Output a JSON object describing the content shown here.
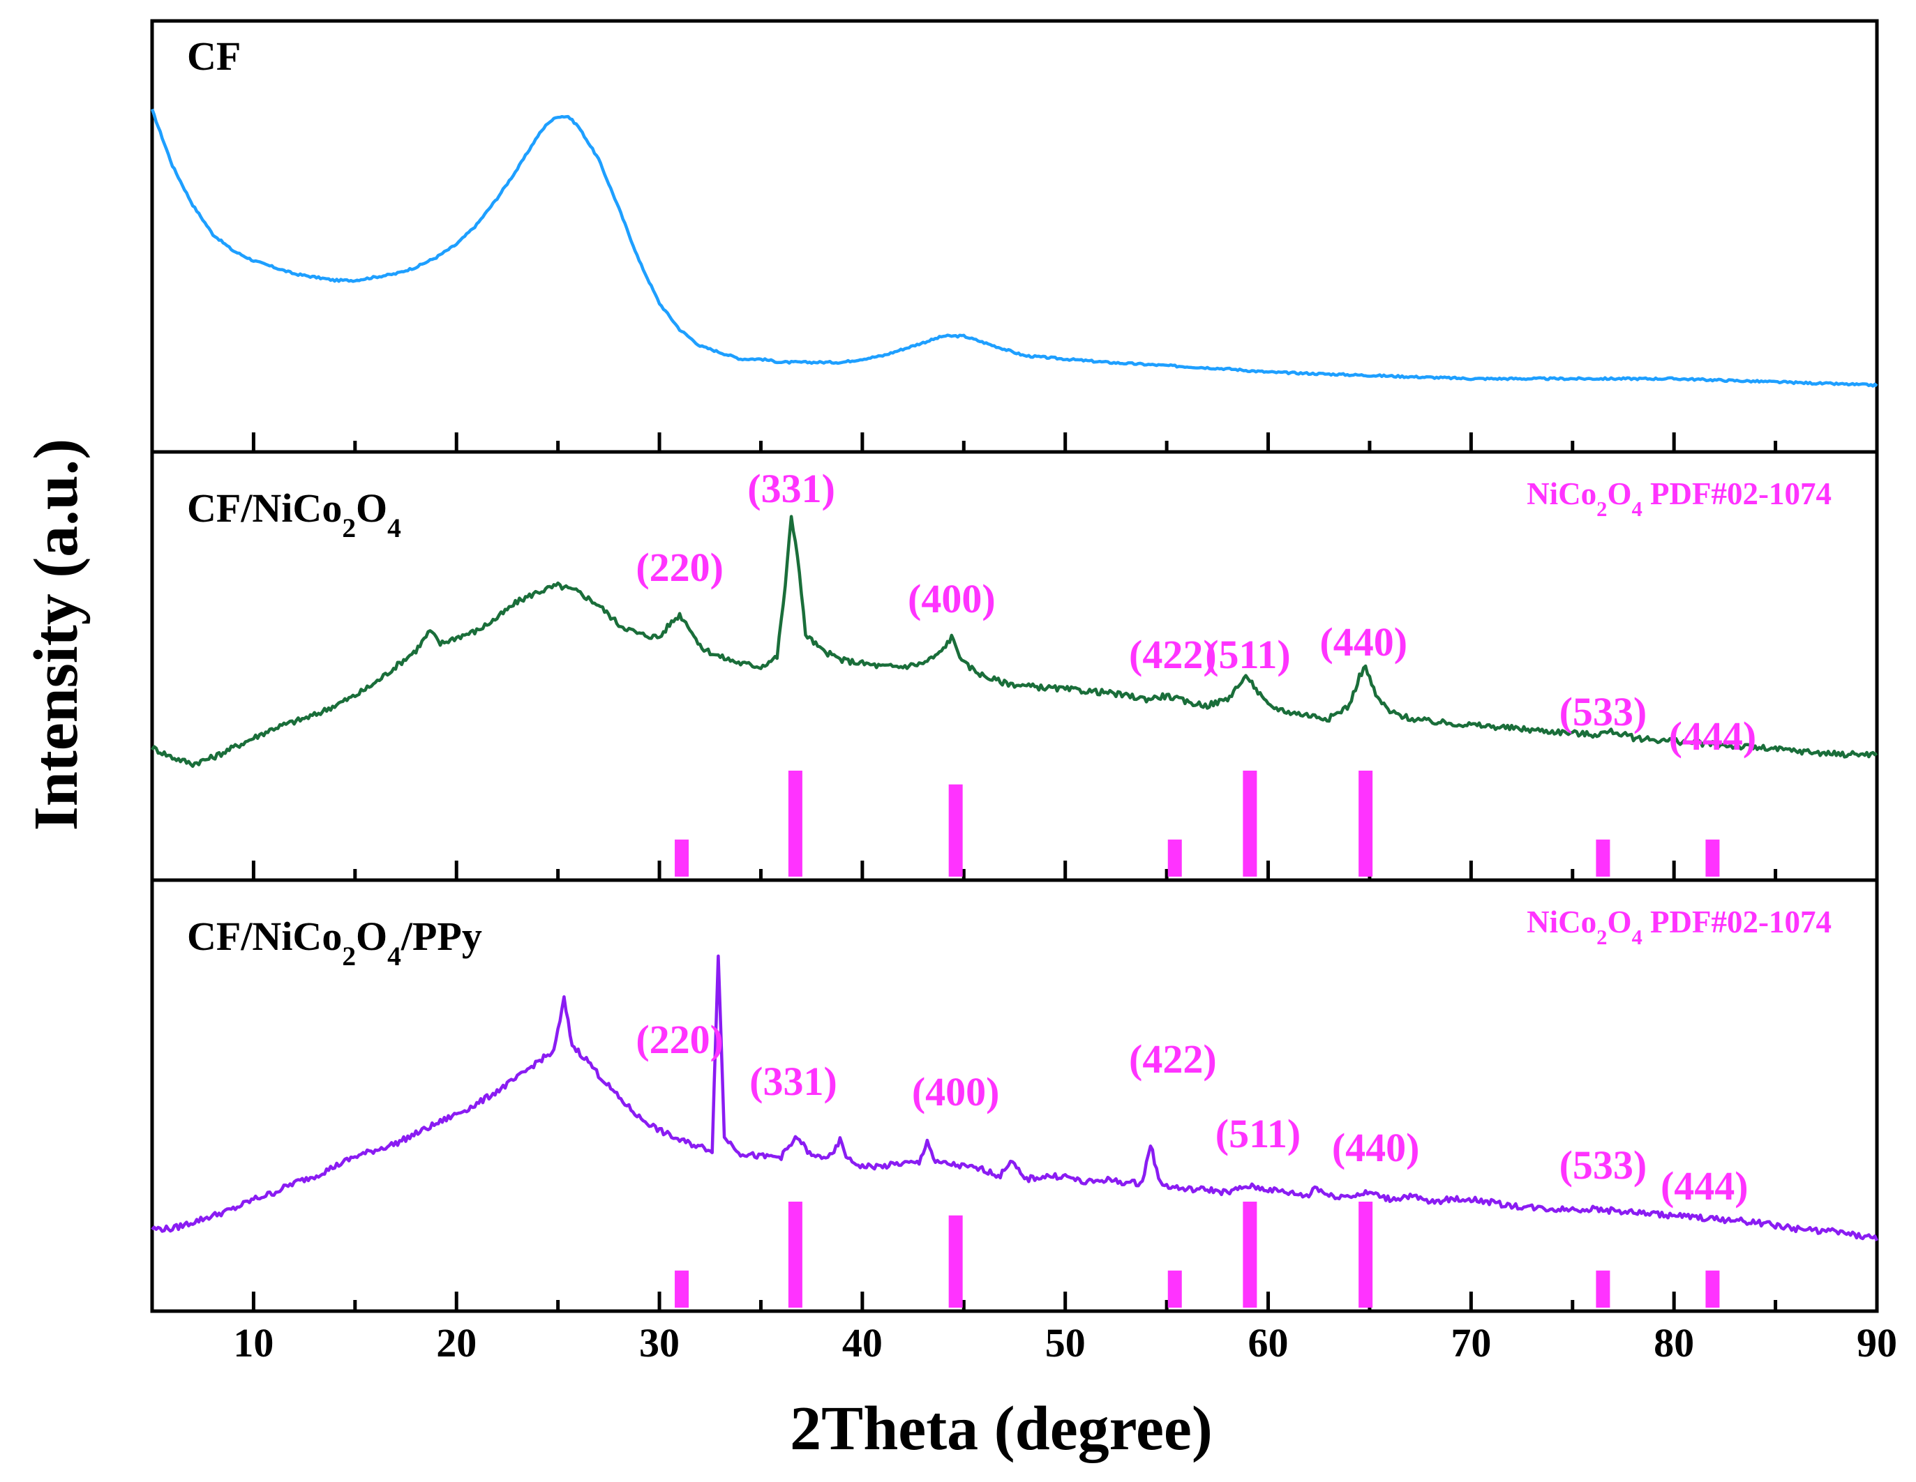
{
  "chart_data": {
    "type": "line",
    "title": "",
    "xlabel": "2Theta (degree)",
    "ylabel": "Intensity (a.u.)",
    "xlim": [
      5,
      90
    ],
    "xticks": [
      10,
      20,
      30,
      40,
      50,
      60,
      70,
      80,
      90
    ],
    "xtick_labels": [
      "10",
      "20",
      "30",
      "40",
      "50",
      "60",
      "70",
      "80",
      "90"
    ],
    "colors": {
      "cf": "#1e9fff",
      "nco": "#1a6e3a",
      "ppy": "#8a1cf2",
      "ref": "#ff33ff",
      "axis": "#000000"
    },
    "panels": [
      {
        "label": "CF",
        "label_parts": [],
        "color": "#1e9fff",
        "x": [
          5,
          6,
          7,
          8,
          9,
          10,
          11,
          12,
          13,
          14,
          15,
          16,
          17,
          18,
          19,
          20,
          21,
          22,
          23,
          24,
          24.5,
          25,
          25.5,
          26,
          27,
          28,
          29,
          30,
          31,
          32,
          33,
          34,
          35,
          36,
          37,
          38,
          39,
          40,
          41,
          42,
          43,
          44,
          45,
          46,
          47,
          48,
          50,
          52,
          55,
          58,
          60,
          65,
          70,
          75,
          80,
          85,
          90
        ],
        "y": [
          0.92,
          0.75,
          0.63,
          0.54,
          0.49,
          0.46,
          0.44,
          0.42,
          0.41,
          0.4,
          0.4,
          0.41,
          0.42,
          0.44,
          0.47,
          0.51,
          0.57,
          0.65,
          0.74,
          0.84,
          0.88,
          0.9,
          0.9,
          0.87,
          0.77,
          0.62,
          0.46,
          0.33,
          0.25,
          0.2,
          0.18,
          0.16,
          0.16,
          0.15,
          0.15,
          0.15,
          0.15,
          0.16,
          0.17,
          0.19,
          0.21,
          0.23,
          0.23,
          0.21,
          0.19,
          0.17,
          0.16,
          0.15,
          0.14,
          0.13,
          0.12,
          0.11,
          0.1,
          0.1,
          0.1,
          0.09,
          0.08
        ],
        "ylim": [
          0,
          1
        ],
        "annotations": [],
        "reference": null
      },
      {
        "label": "CF/NiCo",
        "label_parts": [
          "CF/NiCo",
          "2",
          "O",
          "4"
        ],
        "color": "#1a6e3a",
        "x": [
          5,
          6,
          7,
          8,
          9,
          10,
          11,
          12,
          13,
          14,
          15,
          16,
          17,
          18,
          18.7,
          19.2,
          20,
          21,
          22,
          23,
          24,
          25,
          26,
          27,
          28,
          29,
          30,
          30.5,
          31,
          31.5,
          32,
          33,
          34,
          35,
          35.8,
          36.2,
          36.5,
          36.8,
          37.2,
          38,
          39,
          40,
          41,
          42,
          43,
          43.8,
          44.4,
          45,
          46,
          47,
          48,
          50,
          52,
          54,
          55,
          56,
          57,
          58,
          58.5,
          59,
          59.5,
          60,
          61,
          62,
          63,
          64,
          64.5,
          64.8,
          65.3,
          66,
          67,
          68,
          70,
          72,
          74,
          76,
          77,
          78,
          80,
          82,
          84,
          86,
          88,
          90
        ],
        "y": [
          0.2,
          0.17,
          0.15,
          0.17,
          0.2,
          0.23,
          0.26,
          0.28,
          0.3,
          0.33,
          0.36,
          0.4,
          0.45,
          0.5,
          0.56,
          0.52,
          0.54,
          0.56,
          0.6,
          0.65,
          0.68,
          0.7,
          0.68,
          0.64,
          0.58,
          0.55,
          0.54,
          0.58,
          0.61,
          0.57,
          0.51,
          0.48,
          0.46,
          0.45,
          0.48,
          0.7,
          0.91,
          0.8,
          0.55,
          0.5,
          0.47,
          0.46,
          0.45,
          0.45,
          0.46,
          0.49,
          0.54,
          0.46,
          0.42,
          0.4,
          0.39,
          0.38,
          0.37,
          0.35,
          0.36,
          0.34,
          0.33,
          0.35,
          0.39,
          0.42,
          0.37,
          0.33,
          0.31,
          0.3,
          0.29,
          0.33,
          0.42,
          0.45,
          0.36,
          0.31,
          0.29,
          0.28,
          0.27,
          0.26,
          0.25,
          0.24,
          0.25,
          0.23,
          0.22,
          0.21,
          0.2,
          0.19,
          0.18,
          0.18
        ],
        "ylim": [
          0,
          1
        ],
        "annotations": [
          {
            "text": "(220)",
            "x": 31
          },
          {
            "text": "(331)",
            "x": 36.5
          },
          {
            "text": "(400)",
            "x": 44.4
          },
          {
            "text": "(422)",
            "x": 55.3
          },
          {
            "text": "(511)",
            "x": 59
          },
          {
            "text": "(440)",
            "x": 64.7
          },
          {
            "text": "(533)",
            "x": 76.5
          },
          {
            "text": "(444)",
            "x": 81.9
          }
        ],
        "reference": {
          "label_parts": [
            "NiCo",
            "2",
            "O",
            "4",
            " PDF#02-1074"
          ],
          "peaks": [
            {
              "x": 31.1,
              "rel": 0.35
            },
            {
              "x": 36.7,
              "rel": 1.0
            },
            {
              "x": 44.6,
              "rel": 0.87
            },
            {
              "x": 55.4,
              "rel": 0.35
            },
            {
              "x": 59.1,
              "rel": 1.0
            },
            {
              "x": 64.8,
              "rel": 1.0
            },
            {
              "x": 76.5,
              "rel": 0.35
            },
            {
              "x": 81.9,
              "rel": 0.35
            }
          ]
        }
      },
      {
        "label": "CF/NiCo",
        "label_parts": [
          "CF/NiCo",
          "2",
          "O",
          "4",
          "/PPy"
        ],
        "color": "#8a1cf2",
        "x": [
          5,
          6,
          7,
          8,
          9,
          10,
          11,
          12,
          13,
          14,
          15,
          16,
          17,
          18,
          19,
          20,
          21,
          22,
          23,
          24,
          24.8,
          25.3,
          25.7,
          26.5,
          27,
          28,
          29,
          30,
          31,
          32,
          32.6,
          32.9,
          33.2,
          34,
          35,
          36,
          36.8,
          37.5,
          38.5,
          38.9,
          39.3,
          40,
          41,
          42,
          42.8,
          43.2,
          43.6,
          44,
          45,
          46,
          46.8,
          47.3,
          48,
          49,
          50,
          51,
          52,
          53,
          53.8,
          54.2,
          54.6,
          55,
          56,
          57,
          58,
          59,
          60,
          61,
          62,
          62.3,
          63,
          64,
          65,
          66,
          67,
          68,
          69,
          70,
          72,
          74,
          76,
          78,
          80,
          82,
          84,
          86,
          88,
          90
        ],
        "y": [
          0.06,
          0.06,
          0.08,
          0.1,
          0.12,
          0.15,
          0.17,
          0.2,
          0.22,
          0.25,
          0.28,
          0.3,
          0.32,
          0.35,
          0.38,
          0.41,
          0.44,
          0.48,
          0.52,
          0.57,
          0.6,
          0.76,
          0.62,
          0.57,
          0.53,
          0.46,
          0.4,
          0.36,
          0.33,
          0.31,
          0.3,
          0.9,
          0.34,
          0.29,
          0.28,
          0.28,
          0.34,
          0.28,
          0.28,
          0.33,
          0.27,
          0.25,
          0.25,
          0.26,
          0.26,
          0.33,
          0.26,
          0.26,
          0.25,
          0.24,
          0.22,
          0.27,
          0.21,
          0.22,
          0.22,
          0.2,
          0.21,
          0.2,
          0.2,
          0.32,
          0.21,
          0.19,
          0.18,
          0.18,
          0.17,
          0.19,
          0.18,
          0.17,
          0.16,
          0.19,
          0.16,
          0.16,
          0.17,
          0.15,
          0.16,
          0.14,
          0.15,
          0.15,
          0.13,
          0.12,
          0.12,
          0.11,
          0.1,
          0.09,
          0.08,
          0.06,
          0.05,
          0.03
        ],
        "ylim": [
          0,
          1
        ],
        "annotations": [
          {
            "text": "(220)",
            "x": 31
          },
          {
            "text": "(331)",
            "x": 36.6
          },
          {
            "text": "(400)",
            "x": 44.6
          },
          {
            "text": "(422)",
            "x": 55.3
          },
          {
            "text": "(511)",
            "x": 59.5
          },
          {
            "text": "(440)",
            "x": 65.3
          },
          {
            "text": "(533)",
            "x": 76.5
          },
          {
            "text": "(444)",
            "x": 81.5
          }
        ],
        "reference": {
          "label_parts": [
            "NiCo",
            "2",
            "O",
            "4",
            " PDF#02-1074"
          ],
          "peaks": [
            {
              "x": 31.1,
              "rel": 0.35
            },
            {
              "x": 36.7,
              "rel": 1.0
            },
            {
              "x": 44.6,
              "rel": 0.87
            },
            {
              "x": 55.4,
              "rel": 0.35
            },
            {
              "x": 59.1,
              "rel": 1.0
            },
            {
              "x": 64.8,
              "rel": 1.0
            },
            {
              "x": 76.5,
              "rel": 0.35
            },
            {
              "x": 81.9,
              "rel": 0.35
            }
          ]
        }
      }
    ]
  }
}
